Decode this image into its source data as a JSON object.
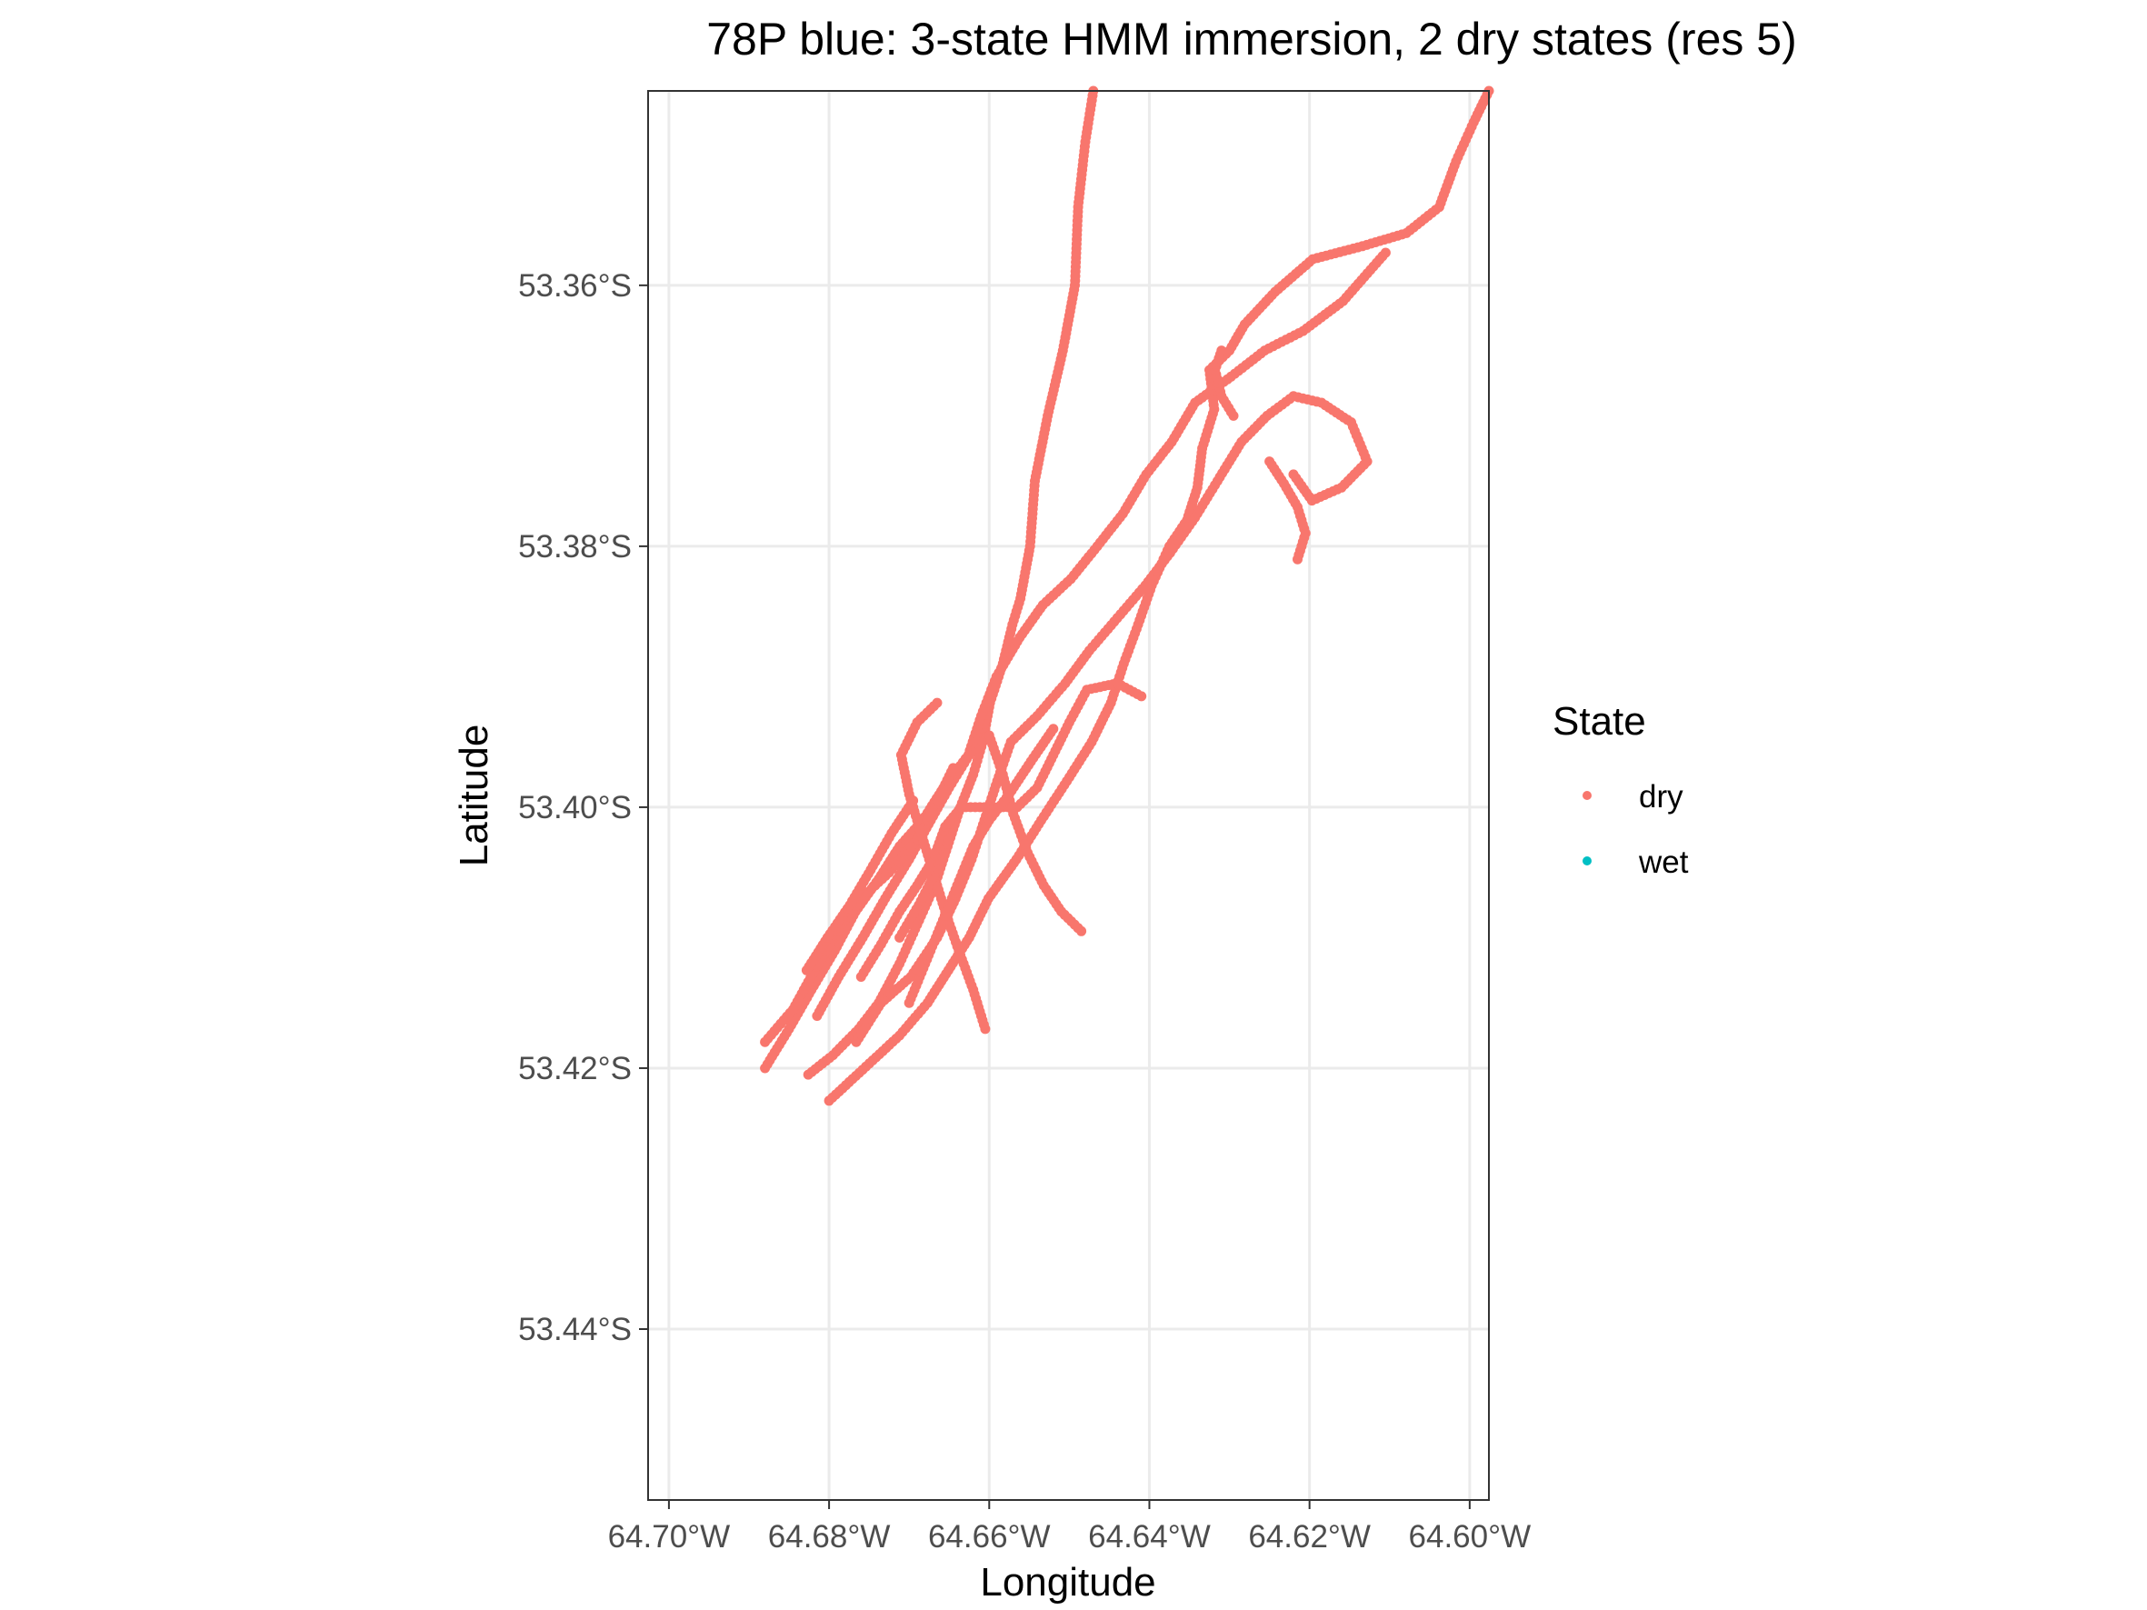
{
  "chart_data": {
    "type": "scatter",
    "title": "78P blue: 3-state HMM immersion, 2 dry states (res 5)",
    "xlabel": "Longitude",
    "ylabel": "Latitude",
    "xlim": [
      -64.7026,
      -64.5976
    ],
    "ylim": [
      -53.4531,
      -53.3451
    ],
    "x_ticks": [
      -64.7,
      -64.68,
      -64.66,
      -64.64,
      -64.62,
      -64.6
    ],
    "x_tick_labels": [
      "64.70°W",
      "64.68°W",
      "64.66°W",
      "64.64°W",
      "64.62°W",
      "64.60°W"
    ],
    "y_ticks": [
      -53.36,
      -53.38,
      -53.4,
      -53.42,
      -53.44
    ],
    "y_tick_labels": [
      "53.36°S",
      "53.38°S",
      "53.40°S",
      "53.42°S",
      "53.44°S"
    ],
    "grid": true,
    "legend": {
      "title": "State",
      "position": "right",
      "entries": [
        {
          "label": "dry",
          "color": "#F8766D"
        },
        {
          "label": "wet",
          "color": "#00BFC4"
        }
      ]
    },
    "path_color": "#000000",
    "series": [
      {
        "name": "dry",
        "color": "#F8766D",
        "segments": [
          [
            [
              -64.647,
              -53.345
            ],
            [
              -64.648,
              -53.349
            ],
            [
              -64.6489,
              -53.354
            ],
            [
              -64.6493,
              -53.36
            ],
            [
              -64.6508,
              -53.365
            ],
            [
              -64.6527,
              -53.37
            ],
            [
              -64.6543,
              -53.375
            ],
            [
              -64.6549,
              -53.38
            ],
            [
              -64.6561,
              -53.384
            ],
            [
              -64.6571,
              -53.386
            ],
            [
              -64.6583,
              -53.389
            ],
            [
              -64.6599,
              -53.392
            ],
            [
              -64.6608,
              -53.395
            ],
            [
              -64.662,
              -53.3975
            ],
            [
              -64.6636,
              -53.4
            ],
            [
              -64.6652,
              -53.403
            ],
            [
              -64.6668,
              -53.406
            ],
            [
              -64.669,
              -53.409
            ],
            [
              -64.6712,
              -53.412
            ],
            [
              -64.6738,
              -53.415
            ],
            [
              -64.6763,
              -53.417
            ],
            [
              -64.6795,
              -53.419
            ],
            [
              -64.6826,
              -53.4205
            ]
          ],
          [
            [
              -64.597,
              -53.345
            ],
            [
              -64.5995,
              -53.3475
            ],
            [
              -64.6017,
              -53.3505
            ],
            [
              -64.6038,
              -53.354
            ],
            [
              -64.6079,
              -53.356
            ],
            [
              -64.6134,
              -53.357
            ],
            [
              -64.6196,
              -53.358
            ],
            [
              -64.6243,
              -53.3605
            ],
            [
              -64.6281,
              -53.363
            ],
            [
              -64.63,
              -53.365
            ],
            [
              -64.6325,
              -53.3665
            ],
            [
              -64.6319,
              -53.3695
            ],
            [
              -64.6334,
              -53.3725
            ],
            [
              -64.634,
              -53.3755
            ],
            [
              -64.6353,
              -53.378
            ],
            [
              -64.6375,
              -53.38
            ],
            [
              -64.6397,
              -53.383
            ],
            [
              -64.6414,
              -53.386
            ],
            [
              -64.6432,
              -53.389
            ],
            [
              -64.6448,
              -53.392
            ],
            [
              -64.6472,
              -53.395
            ],
            [
              -64.6503,
              -53.398
            ],
            [
              -64.6535,
              -53.401
            ],
            [
              -64.6566,
              -53.404
            ],
            [
              -64.6601,
              -53.407
            ],
            [
              -64.6625,
              -53.41
            ],
            [
              -64.6651,
              -53.4125
            ],
            [
              -64.6677,
              -53.415
            ],
            [
              -64.6712,
              -53.4175
            ],
            [
              -64.68,
              -53.4225
            ]
          ],
          [
            [
              -64.688,
              -53.42
            ],
            [
              -64.685,
              -53.417
            ],
            [
              -64.6822,
              -53.414
            ],
            [
              -64.6793,
              -53.411
            ],
            [
              -64.6767,
              -53.408
            ],
            [
              -64.6738,
              -53.4055
            ],
            [
              -64.6712,
              -53.403
            ],
            [
              -64.6683,
              -53.401
            ],
            [
              -64.6657,
              -53.3985
            ],
            [
              -64.6626,
              -53.396
            ],
            [
              -64.661,
              -53.393
            ],
            [
              -64.6591,
              -53.39
            ],
            [
              -64.6562,
              -53.387
            ],
            [
              -64.6533,
              -53.3845
            ],
            [
              -64.6498,
              -53.3825
            ],
            [
              -64.6465,
              -53.38
            ],
            [
              -64.6433,
              -53.3775
            ],
            [
              -64.6404,
              -53.3745
            ],
            [
              -64.6372,
              -53.372
            ],
            [
              -64.6343,
              -53.369
            ],
            [
              -64.6298,
              -53.367
            ],
            [
              -64.6256,
              -53.365
            ],
            [
              -64.6208,
              -53.3635
            ],
            [
              -64.6158,
              -53.3612
            ],
            [
              -64.6105,
              -53.3575
            ]
          ],
          [
            [
              -64.6766,
              -53.418
            ],
            [
              -64.6735,
              -53.415
            ],
            [
              -64.6698,
              -53.413
            ],
            [
              -64.6665,
              -53.41
            ],
            [
              -64.6642,
              -53.407
            ],
            [
              -64.6622,
              -53.404
            ],
            [
              -64.6606,
              -53.401
            ],
            [
              -64.659,
              -53.398
            ],
            [
              -64.6573,
              -53.395
            ],
            [
              -64.654,
              -53.393
            ],
            [
              -64.6505,
              -53.3905
            ],
            [
              -64.6475,
              -53.388
            ],
            [
              -64.644,
              -53.3855
            ],
            [
              -64.6405,
              -53.383
            ],
            [
              -64.6374,
              -53.3805
            ],
            [
              -64.6343,
              -53.3778
            ],
            [
              -64.6315,
              -53.375
            ],
            [
              -64.6285,
              -53.372
            ],
            [
              -64.6253,
              -53.37
            ],
            [
              -64.622,
              -53.3685
            ],
            [
              -64.6185,
              -53.369
            ],
            [
              -64.6148,
              -53.3705
            ],
            [
              -64.6128,
              -53.3735
            ],
            [
              -64.616,
              -53.3755
            ],
            [
              -64.6197,
              -53.3765
            ],
            [
              -64.622,
              -53.3745
            ]
          ],
          [
            [
              -64.6815,
              -53.416
            ],
            [
              -64.6788,
              -53.413
            ],
            [
              -64.6758,
              -53.41
            ],
            [
              -64.673,
              -53.407
            ],
            [
              -64.67,
              -53.404
            ],
            [
              -64.6673,
              -53.401
            ],
            [
              -64.665,
              -53.3985
            ],
            [
              -64.6625,
              -53.396
            ],
            [
              -64.66,
              -53.3945
            ],
            [
              -64.6583,
              -53.3975
            ],
            [
              -64.657,
              -53.4005
            ],
            [
              -64.6552,
              -53.4035
            ],
            [
              -64.6532,
              -53.406
            ],
            [
              -64.651,
              -53.408
            ],
            [
              -64.6485,
              -53.4095
            ]
          ],
          [
            [
              -64.688,
              -53.418
            ],
            [
              -64.6845,
              -53.4155
            ],
            [
              -64.6818,
              -53.4125
            ],
            [
              -64.679,
              -53.4095
            ],
            [
              -64.676,
              -53.407
            ],
            [
              -64.6725,
              -53.405
            ],
            [
              -64.669,
              -53.4025
            ],
            [
              -64.6665,
              -53.3995
            ],
            [
              -64.6645,
              -53.397
            ]
          ],
          [
            [
              -64.6605,
              -53.417
            ],
            [
              -64.662,
              -53.414
            ],
            [
              -64.6638,
              -53.411
            ],
            [
              -64.6655,
              -53.408
            ],
            [
              -64.667,
              -53.405
            ],
            [
              -64.6685,
              -53.402
            ],
            [
              -64.67,
              -53.399
            ],
            [
              -64.671,
              -53.396
            ],
            [
              -64.669,
              -53.3935
            ],
            [
              -64.6665,
              -53.392
            ]
          ],
          [
            [
              -64.676,
              -53.413
            ],
            [
              -64.6735,
              -53.4105
            ],
            [
              -64.6712,
              -53.408
            ],
            [
              -64.669,
              -53.406
            ],
            [
              -64.667,
              -53.404
            ],
            [
              -64.6655,
              -53.4015
            ],
            [
              -64.6635,
              -53.4
            ],
            [
              -64.66,
              -53.4
            ],
            [
              -64.6565,
              -53.4
            ],
            [
              -64.654,
              -53.3985
            ],
            [
              -64.652,
              -53.396
            ],
            [
              -64.65,
              -53.3935
            ],
            [
              -64.6478,
              -53.391
            ],
            [
              -64.644,
              -53.3905
            ],
            [
              -64.641,
              -53.3915
            ]
          ],
          [
            [
              -64.6828,
              -53.4125
            ],
            [
              -64.6802,
              -53.41
            ],
            [
              -64.6774,
              -53.4075
            ],
            [
              -64.6748,
              -53.4048
            ],
            [
              -64.6722,
              -53.402
            ],
            [
              -64.6695,
              -53.3995
            ]
          ],
          [
            [
              -64.67,
              -53.415
            ],
            [
              -64.668,
              -53.412
            ],
            [
              -64.666,
              -53.409
            ],
            [
              -64.664,
              -53.406
            ],
            [
              -64.662,
              -53.403
            ],
            [
              -64.66,
              -53.401
            ],
            [
              -64.6575,
              -53.399
            ],
            [
              -64.6548,
              -53.3965
            ],
            [
              -64.652,
              -53.394
            ]
          ],
          [
            [
              -64.6712,
              -53.41
            ],
            [
              -64.6688,
              -53.4075
            ],
            [
              -64.6667,
              -53.405
            ],
            [
              -64.665,
              -53.4025
            ]
          ],
          [
            [
              -64.6295,
              -53.37
            ],
            [
              -64.631,
              -53.3685
            ],
            [
              -64.6318,
              -53.3665
            ],
            [
              -64.631,
              -53.365
            ]
          ],
          [
            [
              -64.625,
              -53.3735
            ],
            [
              -64.6232,
              -53.3752
            ],
            [
              -64.6215,
              -53.377
            ],
            [
              -64.6205,
              -53.379
            ],
            [
              -64.6215,
              -53.381
            ]
          ]
        ]
      },
      {
        "name": "wet",
        "color": "#00BFC4",
        "segments": []
      }
    ]
  }
}
